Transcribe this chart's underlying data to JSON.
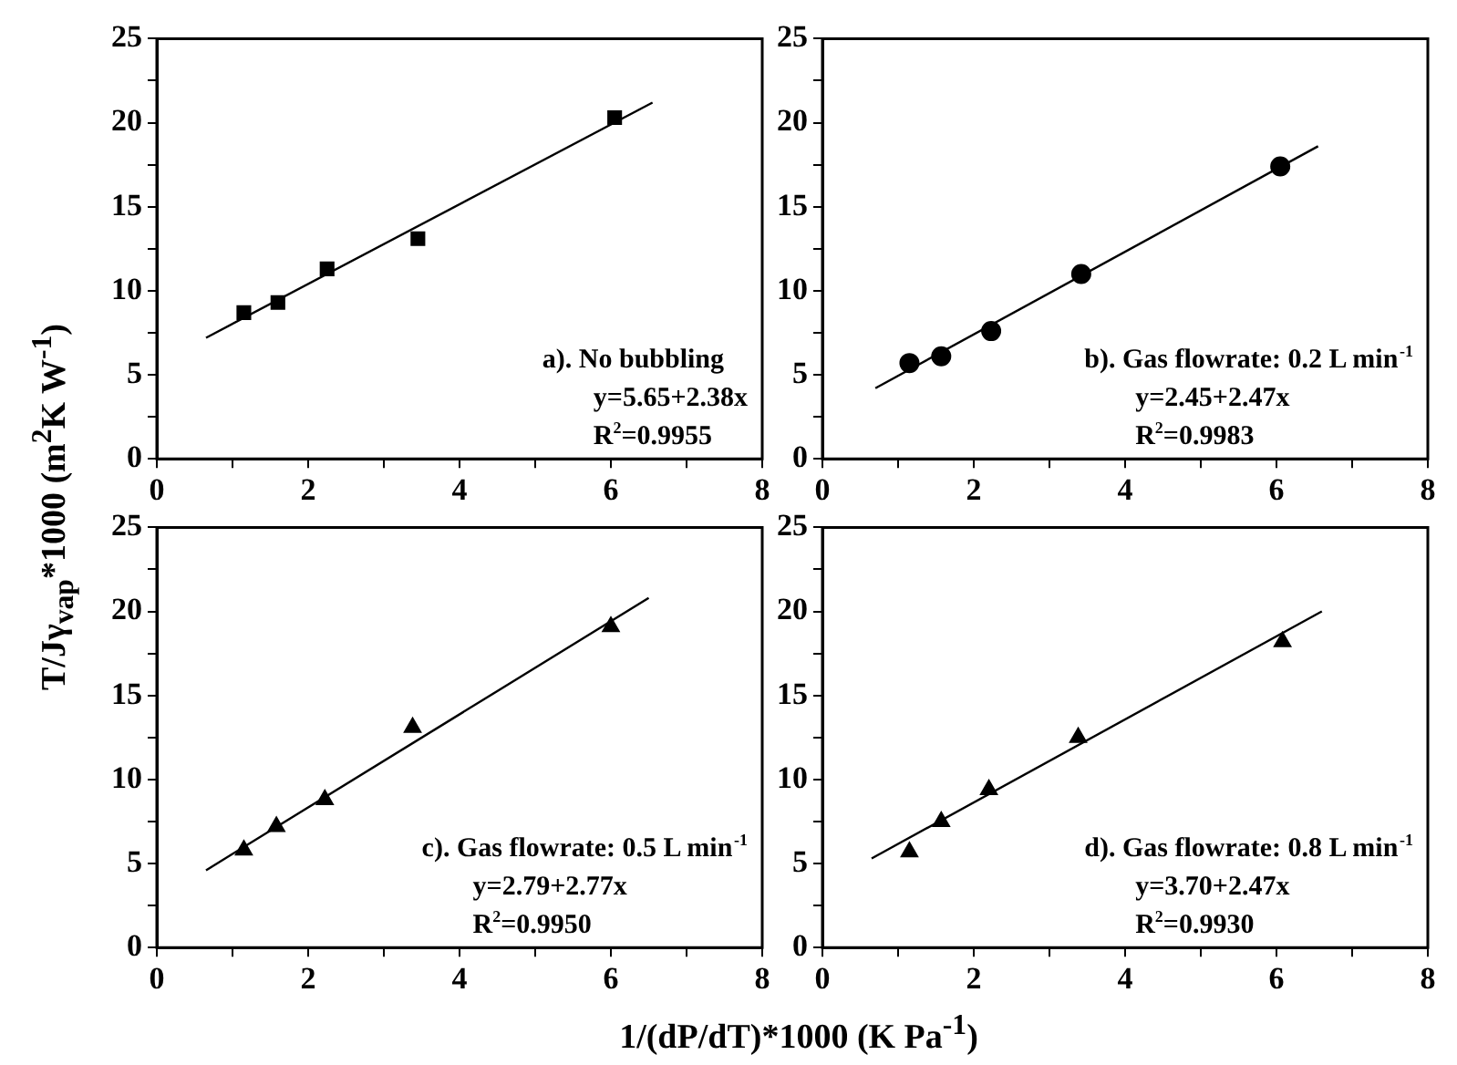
{
  "chart_data": [
    {
      "type": "scatter",
      "ylabel": "T/Jγ$_{vap}$*1000 (m$^{2}$K W$^{-1}$)",
      "xlim": [
        0,
        8
      ],
      "ylim": [
        0,
        25
      ],
      "xticks": [
        0,
        {
          "value": 1,
          "label": null
        },
        2,
        {
          "value": 3,
          "label": null
        },
        4,
        {
          "value": 5,
          "label": null
        },
        6,
        {
          "value": 7,
          "label": null
        },
        8
      ],
      "yticks": [
        0,
        {
          "value": 2.5,
          "label": null
        },
        5,
        {
          "value": 7.5,
          "label": null
        },
        10,
        {
          "value": 12.5,
          "label": null
        },
        15,
        {
          "value": 17.5,
          "label": null
        },
        20,
        {
          "value": 22.5,
          "label": null
        },
        25
      ],
      "grid": false,
      "legend": false,
      "annotations": [
        "a). No bubbling",
        "y=5.65+2.38x",
        "R$^{2}$=0.9955"
      ],
      "series": [
        {
          "marker": "square",
          "color": "#000000",
          "x": [
            1.15,
            1.6,
            2.25,
            3.45,
            6.05
          ],
          "values": [
            8.7,
            9.3,
            11.3,
            13.1,
            20.3
          ]
        },
        {
          "type": "line",
          "marker": "none",
          "color": "#000000",
          "x": [
            0.65,
            6.55
          ],
          "values": [
            7.2,
            21.2
          ]
        }
      ]
    },
    {
      "type": "scatter",
      "xlim": [
        0,
        8
      ],
      "ylim": [
        0,
        25
      ],
      "xticks": [
        0,
        {
          "value": 1,
          "label": null
        },
        2,
        {
          "value": 3,
          "label": null
        },
        4,
        {
          "value": 5,
          "label": null
        },
        6,
        {
          "value": 7,
          "label": null
        },
        8
      ],
      "yticks": [
        0,
        {
          "value": 2.5,
          "label": null
        },
        5,
        {
          "value": 7.5,
          "label": null
        },
        10,
        {
          "value": 12.5,
          "label": null
        },
        15,
        {
          "value": 17.5,
          "label": null
        },
        20,
        {
          "value": 22.5,
          "label": null
        },
        25
      ],
      "grid": false,
      "legend": false,
      "annotations": [
        "b). Gas flowrate: 0.2 L min$^{-1}$",
        "y=2.45+2.47x",
        "R$^{2}$=0.9983"
      ],
      "series": [
        {
          "marker": "circle",
          "color": "#000000",
          "x": [
            1.15,
            1.57,
            2.23,
            3.42,
            6.05
          ],
          "values": [
            5.7,
            6.1,
            7.6,
            11.0,
            17.4
          ]
        },
        {
          "type": "line",
          "marker": "none",
          "color": "#000000",
          "x": [
            0.7,
            6.55
          ],
          "values": [
            4.2,
            18.6
          ]
        }
      ]
    },
    {
      "type": "scatter",
      "xlabel": "1/(dP/dT)*1000 (K Pa$^{-1}$)",
      "xlim": [
        0,
        8
      ],
      "ylim": [
        0,
        25
      ],
      "xticks": [
        0,
        {
          "value": 1,
          "label": null
        },
        2,
        {
          "value": 3,
          "label": null
        },
        4,
        {
          "value": 5,
          "label": null
        },
        6,
        {
          "value": 7,
          "label": null
        },
        8
      ],
      "yticks": [
        0,
        {
          "value": 2.5,
          "label": null
        },
        5,
        {
          "value": 7.5,
          "label": null
        },
        10,
        {
          "value": 12.5,
          "label": null
        },
        15,
        {
          "value": 17.5,
          "label": null
        },
        20,
        {
          "value": 22.5,
          "label": null
        },
        25
      ],
      "grid": false,
      "legend": false,
      "annotations": [
        "c). Gas flowrate: 0.5 L min$^{-1}$",
        "y=2.79+2.77x",
        "R$^{2}$=0.9950"
      ],
      "series": [
        {
          "marker": "triangle",
          "color": "#000000",
          "x": [
            1.15,
            1.58,
            2.22,
            3.38,
            6.0
          ],
          "values": [
            5.8,
            7.2,
            8.8,
            13.1,
            19.1
          ]
        },
        {
          "type": "line",
          "marker": "none",
          "color": "#000000",
          "x": [
            0.65,
            6.5
          ],
          "values": [
            4.6,
            20.8
          ]
        }
      ]
    },
    {
      "type": "scatter",
      "xlim": [
        0,
        8
      ],
      "ylim": [
        0,
        25
      ],
      "xticks": [
        0,
        {
          "value": 1,
          "label": null
        },
        2,
        {
          "value": 3,
          "label": null
        },
        4,
        {
          "value": 5,
          "label": null
        },
        6,
        {
          "value": 7,
          "label": null
        },
        8
      ],
      "yticks": [
        0,
        {
          "value": 2.5,
          "label": null
        },
        5,
        {
          "value": 7.5,
          "label": null
        },
        10,
        {
          "value": 12.5,
          "label": null
        },
        15,
        {
          "value": 17.5,
          "label": null
        },
        20,
        {
          "value": 22.5,
          "label": null
        },
        25
      ],
      "grid": false,
      "legend": false,
      "annotations": [
        "d). Gas flowrate: 0.8 L min$^{-1}$",
        "y=3.70+2.47x",
        "R$^{2}$=0.9930"
      ],
      "series": [
        {
          "marker": "triangle",
          "color": "#000000",
          "x": [
            1.15,
            1.57,
            2.2,
            3.38,
            6.08
          ],
          "values": [
            5.7,
            7.5,
            9.4,
            12.5,
            18.2
          ]
        },
        {
          "type": "line",
          "marker": "none",
          "color": "#000000",
          "x": [
            0.65,
            6.6
          ],
          "values": [
            5.3,
            20.0
          ]
        }
      ]
    }
  ]
}
